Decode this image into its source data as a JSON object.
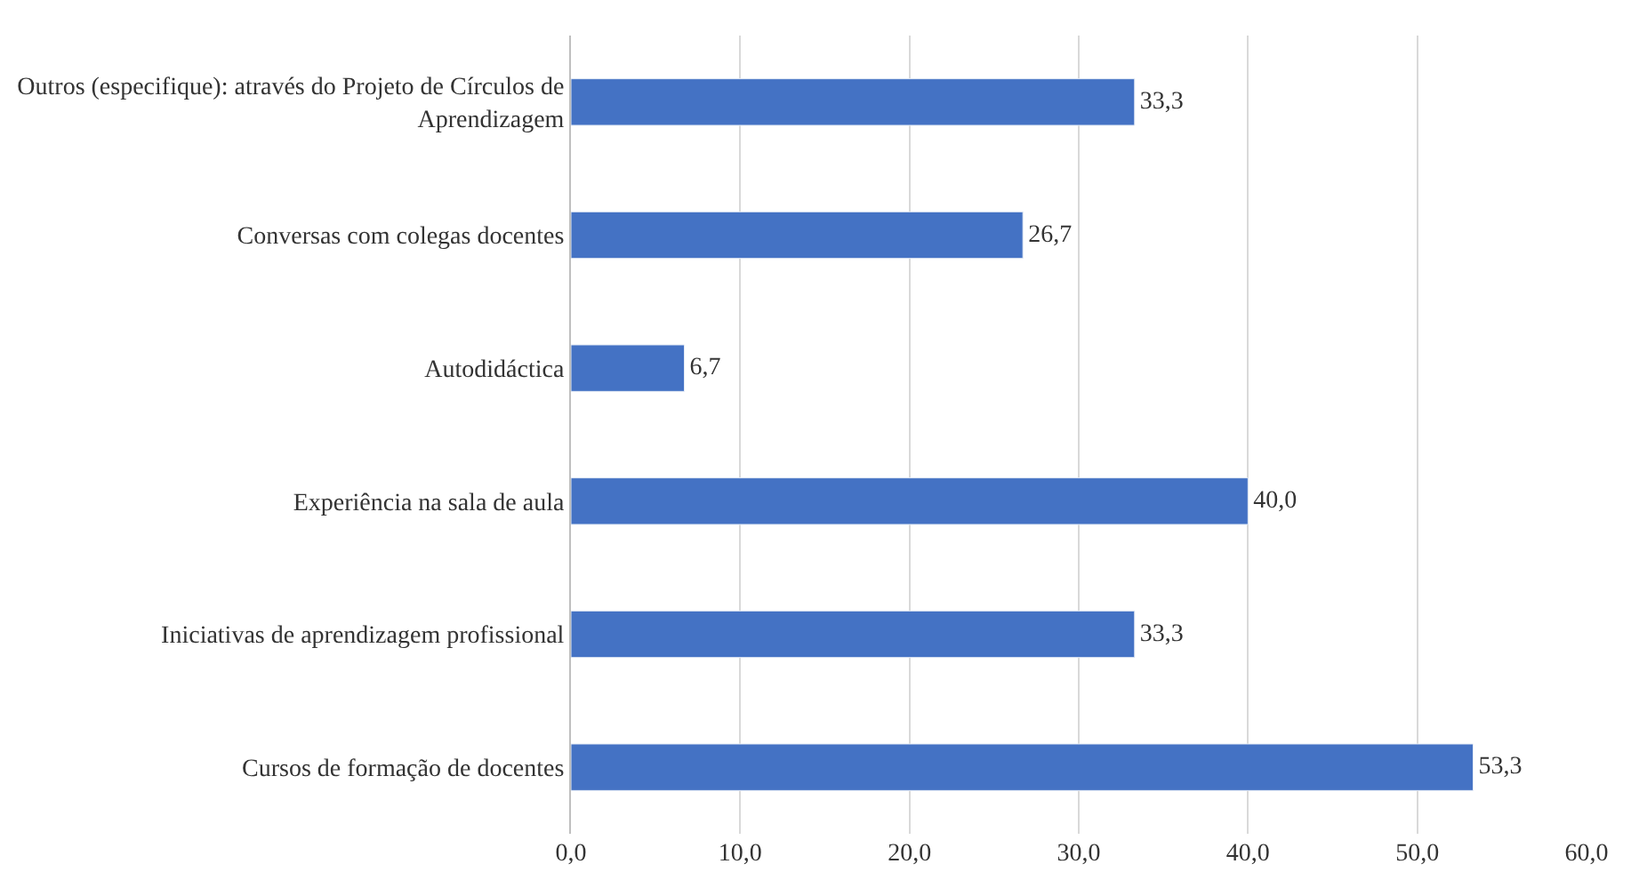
{
  "chart_data": {
    "type": "bar",
    "orientation": "horizontal",
    "categories": [
      "Outros (especifique): através do Projeto de Círculos de Aprendizagem",
      "Conversas com colegas docentes",
      "Autodidáctica",
      "Experiência na sala de aula",
      "Iniciativas de aprendizagem profissional",
      "Cursos de formação de docentes"
    ],
    "values": [
      33.3,
      26.7,
      6.7,
      40.0,
      33.3,
      53.3
    ],
    "value_labels": [
      "33,3",
      "26,7",
      "6,7",
      "40,0",
      "33,3",
      "53,3"
    ],
    "color": "#4472c4",
    "xlim": [
      0,
      60
    ],
    "xticks": [
      {
        "value": 0,
        "label": "0,0"
      },
      {
        "value": 10,
        "label": "10,0"
      },
      {
        "value": 20,
        "label": "20,0"
      },
      {
        "value": 30,
        "label": "30,0"
      },
      {
        "value": 40,
        "label": "40,0"
      },
      {
        "value": 50,
        "label": "50,0"
      },
      {
        "value": 60,
        "label": "60,0"
      }
    ],
    "grid": "x",
    "legend": false
  }
}
